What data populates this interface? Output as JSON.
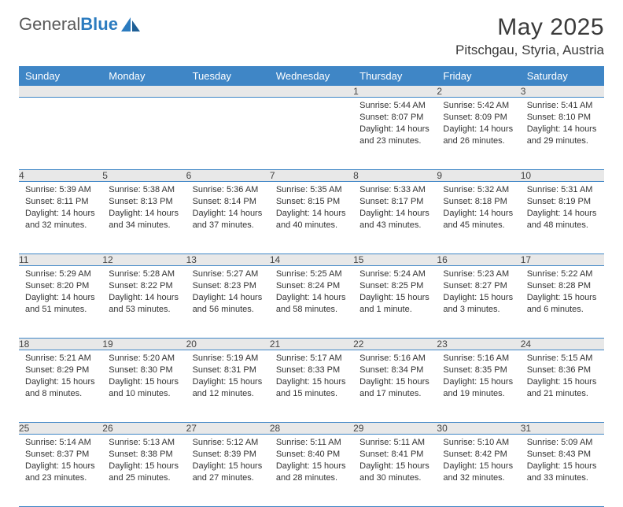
{
  "brand": {
    "part1": "General",
    "part2": "Blue"
  },
  "title": "May 2025",
  "location": "Pitschgau, Styria, Austria",
  "colors": {
    "header_bg": "#3f86c6",
    "header_text": "#ffffff",
    "daynum_bg": "#e8e8e8",
    "rule": "#3f86c6",
    "brand_gray": "#5a5a5a",
    "brand_blue": "#2b7bbf"
  },
  "weekdays": [
    "Sunday",
    "Monday",
    "Tuesday",
    "Wednesday",
    "Thursday",
    "Friday",
    "Saturday"
  ],
  "weeks": [
    [
      null,
      null,
      null,
      null,
      {
        "n": "1",
        "sr": "5:44 AM",
        "ss": "8:07 PM",
        "dl": "14 hours and 23 minutes."
      },
      {
        "n": "2",
        "sr": "5:42 AM",
        "ss": "8:09 PM",
        "dl": "14 hours and 26 minutes."
      },
      {
        "n": "3",
        "sr": "5:41 AM",
        "ss": "8:10 PM",
        "dl": "14 hours and 29 minutes."
      }
    ],
    [
      {
        "n": "4",
        "sr": "5:39 AM",
        "ss": "8:11 PM",
        "dl": "14 hours and 32 minutes."
      },
      {
        "n": "5",
        "sr": "5:38 AM",
        "ss": "8:13 PM",
        "dl": "14 hours and 34 minutes."
      },
      {
        "n": "6",
        "sr": "5:36 AM",
        "ss": "8:14 PM",
        "dl": "14 hours and 37 minutes."
      },
      {
        "n": "7",
        "sr": "5:35 AM",
        "ss": "8:15 PM",
        "dl": "14 hours and 40 minutes."
      },
      {
        "n": "8",
        "sr": "5:33 AM",
        "ss": "8:17 PM",
        "dl": "14 hours and 43 minutes."
      },
      {
        "n": "9",
        "sr": "5:32 AM",
        "ss": "8:18 PM",
        "dl": "14 hours and 45 minutes."
      },
      {
        "n": "10",
        "sr": "5:31 AM",
        "ss": "8:19 PM",
        "dl": "14 hours and 48 minutes."
      }
    ],
    [
      {
        "n": "11",
        "sr": "5:29 AM",
        "ss": "8:20 PM",
        "dl": "14 hours and 51 minutes."
      },
      {
        "n": "12",
        "sr": "5:28 AM",
        "ss": "8:22 PM",
        "dl": "14 hours and 53 minutes."
      },
      {
        "n": "13",
        "sr": "5:27 AM",
        "ss": "8:23 PM",
        "dl": "14 hours and 56 minutes."
      },
      {
        "n": "14",
        "sr": "5:25 AM",
        "ss": "8:24 PM",
        "dl": "14 hours and 58 minutes."
      },
      {
        "n": "15",
        "sr": "5:24 AM",
        "ss": "8:25 PM",
        "dl": "15 hours and 1 minute."
      },
      {
        "n": "16",
        "sr": "5:23 AM",
        "ss": "8:27 PM",
        "dl": "15 hours and 3 minutes."
      },
      {
        "n": "17",
        "sr": "5:22 AM",
        "ss": "8:28 PM",
        "dl": "15 hours and 6 minutes."
      }
    ],
    [
      {
        "n": "18",
        "sr": "5:21 AM",
        "ss": "8:29 PM",
        "dl": "15 hours and 8 minutes."
      },
      {
        "n": "19",
        "sr": "5:20 AM",
        "ss": "8:30 PM",
        "dl": "15 hours and 10 minutes."
      },
      {
        "n": "20",
        "sr": "5:19 AM",
        "ss": "8:31 PM",
        "dl": "15 hours and 12 minutes."
      },
      {
        "n": "21",
        "sr": "5:17 AM",
        "ss": "8:33 PM",
        "dl": "15 hours and 15 minutes."
      },
      {
        "n": "22",
        "sr": "5:16 AM",
        "ss": "8:34 PM",
        "dl": "15 hours and 17 minutes."
      },
      {
        "n": "23",
        "sr": "5:16 AM",
        "ss": "8:35 PM",
        "dl": "15 hours and 19 minutes."
      },
      {
        "n": "24",
        "sr": "5:15 AM",
        "ss": "8:36 PM",
        "dl": "15 hours and 21 minutes."
      }
    ],
    [
      {
        "n": "25",
        "sr": "5:14 AM",
        "ss": "8:37 PM",
        "dl": "15 hours and 23 minutes."
      },
      {
        "n": "26",
        "sr": "5:13 AM",
        "ss": "8:38 PM",
        "dl": "15 hours and 25 minutes."
      },
      {
        "n": "27",
        "sr": "5:12 AM",
        "ss": "8:39 PM",
        "dl": "15 hours and 27 minutes."
      },
      {
        "n": "28",
        "sr": "5:11 AM",
        "ss": "8:40 PM",
        "dl": "15 hours and 28 minutes."
      },
      {
        "n": "29",
        "sr": "5:11 AM",
        "ss": "8:41 PM",
        "dl": "15 hours and 30 minutes."
      },
      {
        "n": "30",
        "sr": "5:10 AM",
        "ss": "8:42 PM",
        "dl": "15 hours and 32 minutes."
      },
      {
        "n": "31",
        "sr": "5:09 AM",
        "ss": "8:43 PM",
        "dl": "15 hours and 33 minutes."
      }
    ]
  ],
  "labels": {
    "sunrise": "Sunrise: ",
    "sunset": "Sunset: ",
    "daylight": "Daylight: "
  }
}
